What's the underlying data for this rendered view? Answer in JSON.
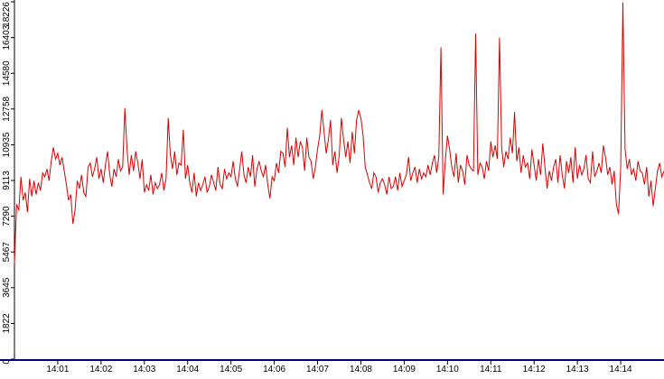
{
  "chart_data": {
    "type": "line",
    "title": "",
    "xlabel": "",
    "ylabel": "",
    "grid": false,
    "legend": "none",
    "colors": {
      "line": "#dd0000",
      "axis": "#000000",
      "xaxis_bar": "#000080",
      "background": "#ffffff"
    },
    "ylim": [
      0,
      18226
    ],
    "y_ticks": [
      {
        "value": 0,
        "label": "0"
      },
      {
        "value": 1822,
        "label": "1822"
      },
      {
        "value": 3645,
        "label": "3645"
      },
      {
        "value": 5467,
        "label": "5467"
      },
      {
        "value": 7290,
        "label": "7290"
      },
      {
        "value": 9113,
        "label": "9113"
      },
      {
        "value": 10935,
        "label": "10935"
      },
      {
        "value": 12758,
        "label": "12758"
      },
      {
        "value": 14580,
        "label": "14580"
      },
      {
        "value": 16403,
        "label": "16403"
      },
      {
        "value": 18226,
        "label": "18226"
      }
    ],
    "xlim": [
      0.0,
      15.0
    ],
    "x_unit": "minutes after 14:00",
    "x_ticks": [
      {
        "value": 1,
        "label": "14:01"
      },
      {
        "value": 2,
        "label": "14:02"
      },
      {
        "value": 3,
        "label": "14:03"
      },
      {
        "value": 4,
        "label": "14:04"
      },
      {
        "value": 5,
        "label": "14:05"
      },
      {
        "value": 6,
        "label": "14:06"
      },
      {
        "value": 7,
        "label": "14:07"
      },
      {
        "value": 8,
        "label": "14:08"
      },
      {
        "value": 9,
        "label": "14:09"
      },
      {
        "value": 10,
        "label": "14:10"
      },
      {
        "value": 11,
        "label": "14:11"
      },
      {
        "value": 12,
        "label": "14:12"
      },
      {
        "value": 13,
        "label": "14:13"
      },
      {
        "value": 14,
        "label": "14:14"
      }
    ],
    "series": [
      {
        "x": [
          0.0,
          0.05,
          0.1,
          0.15,
          0.2,
          0.25,
          0.3,
          0.35,
          0.4,
          0.45,
          0.5,
          0.55,
          0.6,
          0.65,
          0.7,
          0.75,
          0.8,
          0.85,
          0.9,
          0.95,
          1.0,
          1.05,
          1.1,
          1.15,
          1.2,
          1.25,
          1.3,
          1.35,
          1.4,
          1.45,
          1.5,
          1.55,
          1.6,
          1.65,
          1.7,
          1.75,
          1.8,
          1.85,
          1.9,
          1.95,
          2.0,
          2.05,
          2.1,
          2.15,
          2.2,
          2.25,
          2.3,
          2.35,
          2.4,
          2.45,
          2.5,
          2.55,
          2.6,
          2.65,
          2.7,
          2.75,
          2.8,
          2.85,
          2.9,
          2.95,
          3.0,
          3.05,
          3.1,
          3.15,
          3.2,
          3.25,
          3.3,
          3.35,
          3.4,
          3.45,
          3.5,
          3.55,
          3.6,
          3.65,
          3.7,
          3.75,
          3.8,
          3.85,
          3.9,
          3.95,
          4.0,
          4.05,
          4.1,
          4.15,
          4.2,
          4.25,
          4.3,
          4.35,
          4.4,
          4.45,
          4.5,
          4.55,
          4.6,
          4.65,
          4.7,
          4.75,
          4.8,
          4.85,
          4.9,
          4.95,
          5.0,
          5.05,
          5.1,
          5.15,
          5.2,
          5.25,
          5.3,
          5.35,
          5.4,
          5.45,
          5.5,
          5.55,
          5.6,
          5.65,
          5.7,
          5.75,
          5.8,
          5.85,
          5.9,
          5.95,
          6.0,
          6.05,
          6.1,
          6.15,
          6.2,
          6.25,
          6.3,
          6.35,
          6.4,
          6.45,
          6.5,
          6.55,
          6.6,
          6.65,
          6.7,
          6.75,
          6.8,
          6.85,
          6.9,
          6.95,
          7.0,
          7.05,
          7.1,
          7.15,
          7.2,
          7.25,
          7.3,
          7.35,
          7.4,
          7.45,
          7.5,
          7.55,
          7.6,
          7.65,
          7.7,
          7.75,
          7.8,
          7.85,
          7.9,
          7.95,
          8.0,
          8.05,
          8.1,
          8.15,
          8.2,
          8.25,
          8.3,
          8.35,
          8.4,
          8.45,
          8.5,
          8.55,
          8.6,
          8.65,
          8.7,
          8.75,
          8.8,
          8.85,
          8.9,
          8.95,
          9.0,
          9.05,
          9.1,
          9.15,
          9.2,
          9.25,
          9.3,
          9.35,
          9.4,
          9.45,
          9.5,
          9.55,
          9.6,
          9.65,
          9.7,
          9.75,
          9.8,
          9.85,
          9.9,
          9.95,
          10.0,
          10.05,
          10.1,
          10.15,
          10.2,
          10.25,
          10.3,
          10.35,
          10.4,
          10.45,
          10.5,
          10.55,
          10.6,
          10.65,
          10.7,
          10.75,
          10.8,
          10.85,
          10.9,
          10.95,
          11.0,
          11.05,
          11.1,
          11.15,
          11.2,
          11.25,
          11.3,
          11.35,
          11.4,
          11.45,
          11.5,
          11.55,
          11.6,
          11.65,
          11.7,
          11.75,
          11.8,
          11.85,
          11.9,
          11.95,
          12.0,
          12.05,
          12.1,
          12.15,
          12.2,
          12.25,
          12.3,
          12.35,
          12.4,
          12.45,
          12.5,
          12.55,
          12.6,
          12.65,
          12.7,
          12.75,
          12.8,
          12.85,
          12.9,
          12.95,
          13.0,
          13.05,
          13.1,
          13.15,
          13.2,
          13.25,
          13.3,
          13.35,
          13.4,
          13.45,
          13.5,
          13.55,
          13.6,
          13.65,
          13.7,
          13.75,
          13.8,
          13.85,
          13.9,
          13.95,
          14.0,
          14.05,
          14.1,
          14.15,
          14.2,
          14.25,
          14.3,
          14.35,
          14.4,
          14.45,
          14.5,
          14.55,
          14.6,
          14.65,
          14.7,
          14.75,
          14.8,
          14.85,
          14.9,
          14.95,
          15.0
        ],
        "y": [
          4900,
          7900,
          7600,
          9300,
          8100,
          8500,
          7500,
          9200,
          8300,
          9100,
          8400,
          9000,
          8600,
          9500,
          9300,
          9700,
          9100,
          10100,
          10800,
          10200,
          10500,
          9900,
          10300,
          9600,
          8900,
          8100,
          8400,
          6900,
          7600,
          9100,
          8700,
          9400,
          8500,
          8300,
          9800,
          10000,
          9300,
          9700,
          10300,
          9200,
          9700,
          9000,
          9900,
          10600,
          9400,
          8800,
          9700,
          9300,
          10200,
          9600,
          9800,
          12800,
          10700,
          9400,
          10400,
          9600,
          10600,
          10000,
          9200,
          10200,
          8500,
          8900,
          8600,
          9400,
          8400,
          9000,
          8700,
          8900,
          9500,
          8600,
          9200,
          12300,
          10400,
          9700,
          10600,
          9400,
          10000,
          9900,
          11700,
          9200,
          9900,
          9000,
          8500,
          9500,
          8300,
          9000,
          8600,
          8900,
          9300,
          8500,
          8800,
          9400,
          9000,
          8600,
          9800,
          8900,
          8700,
          9700,
          9200,
          9500,
          9300,
          10100,
          9200,
          8800,
          9700,
          10600,
          9400,
          9000,
          9800,
          9300,
          10400,
          8800,
          9700,
          10100,
          9600,
          9300,
          9900,
          8900,
          8200,
          9300,
          9100,
          10000,
          9500,
          10600,
          10500,
          9800,
          11800,
          10300,
          10900,
          9900,
          11300,
          10300,
          11100,
          10800,
          9600,
          11300,
          10300,
          10100,
          9200,
          9800,
          10700,
          11400,
          12700,
          11600,
          10500,
          11200,
          12200,
          9900,
          10600,
          9500,
          10400,
          12300,
          11200,
          10300,
          11100,
          10000,
          11600,
          10500,
          12200,
          12700,
          12300,
          11400,
          9800,
          9400,
          9000,
          8700,
          9500,
          9300,
          8500,
          9000,
          9200,
          8900,
          8400,
          9300,
          8700,
          8800,
          9300,
          8600,
          9500,
          8800,
          9100,
          9400,
          10300,
          9100,
          9500,
          9800,
          9000,
          9700,
          9200,
          9500,
          9300,
          9900,
          9400,
          10000,
          10400,
          9500,
          10300,
          15900,
          8400,
          10100,
          11400,
          10700,
          9800,
          9300,
          10500,
          9000,
          9900,
          9600,
          8900,
          10400,
          9900,
          9700,
          9600,
          16600,
          9400,
          10000,
          9800,
          9200,
          10100,
          9600,
          11100,
          10300,
          10900,
          10200,
          16400,
          10800,
          9800,
          10600,
          10200,
          11300,
          10500,
          12600,
          10100,
          10800,
          9500,
          10400,
          9800,
          10000,
          9200,
          10700,
          9900,
          9100,
          10200,
          9400,
          11000,
          9800,
          8700,
          9600,
          9100,
          9800,
          10200,
          9000,
          10400,
          9400,
          8700,
          10100,
          9500,
          10300,
          9000,
          10800,
          9200,
          9900,
          9400,
          9700,
          10400,
          9200,
          9000,
          10600,
          9300,
          9600,
          10000,
          9500,
          10900,
          10300,
          9400,
          9800,
          8900,
          9600,
          7900,
          7400,
          9800,
          18200,
          10700,
          9700,
          10200,
          9400,
          9700,
          9100,
          10100,
          9600,
          9500,
          8900,
          9800,
          8300,
          9100,
          7800,
          8700,
          9600,
          10000,
          9300,
          9600
        ]
      }
    ]
  }
}
